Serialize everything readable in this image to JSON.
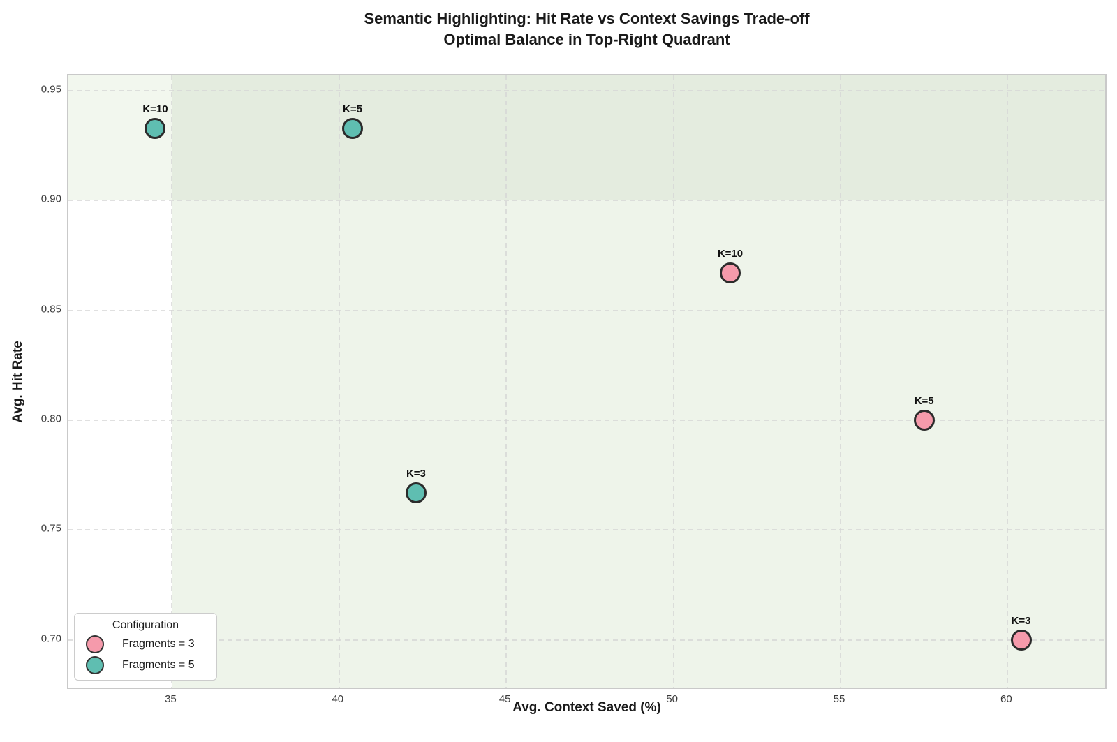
{
  "chart_data": {
    "type": "scatter",
    "title": "Semantic Highlighting: Hit Rate vs Context Savings Trade-off",
    "subtitle": "Optimal Balance in Top-Right Quadrant",
    "xlabel": "Avg. Context Saved (%)",
    "ylabel": "Avg. Hit Rate",
    "xlim": [
      31.9,
      63.0
    ],
    "ylim": [
      0.677,
      0.957
    ],
    "xticks": [
      35,
      40,
      45,
      50,
      55,
      60
    ],
    "yticks": [
      0.7,
      0.75,
      0.8,
      0.85,
      0.9,
      0.95
    ],
    "grid": "dashed",
    "quadrant_thresholds": {
      "x": 35,
      "y": 0.9
    },
    "series": [
      {
        "name": "Fragments = 3",
        "color": "#f59aab",
        "points": [
          {
            "label": "K=10",
            "x": 51.7,
            "y": 0.867
          },
          {
            "label": "K=5",
            "x": 57.5,
            "y": 0.8
          },
          {
            "label": "K=3",
            "x": 60.4,
            "y": 0.7
          }
        ]
      },
      {
        "name": "Fragments = 5",
        "color": "#5fbeb1",
        "points": [
          {
            "label": "K=10",
            "x": 34.5,
            "y": 0.933
          },
          {
            "label": "K=5",
            "x": 40.4,
            "y": 0.933
          },
          {
            "label": "K=3",
            "x": 42.3,
            "y": 0.767
          }
        ]
      }
    ],
    "legend": {
      "title": "Configuration",
      "position": "lower left"
    },
    "style": {
      "marker_edge": "#2b2b2b",
      "grid_color": "#d5d5d5",
      "quadrant_top_left": "#f2f7ee",
      "quadrant_top_right": "#e4ecdf",
      "quadrant_bottom_right": "#eef4ea",
      "quadrant_bottom_left": "#ffffff"
    }
  }
}
